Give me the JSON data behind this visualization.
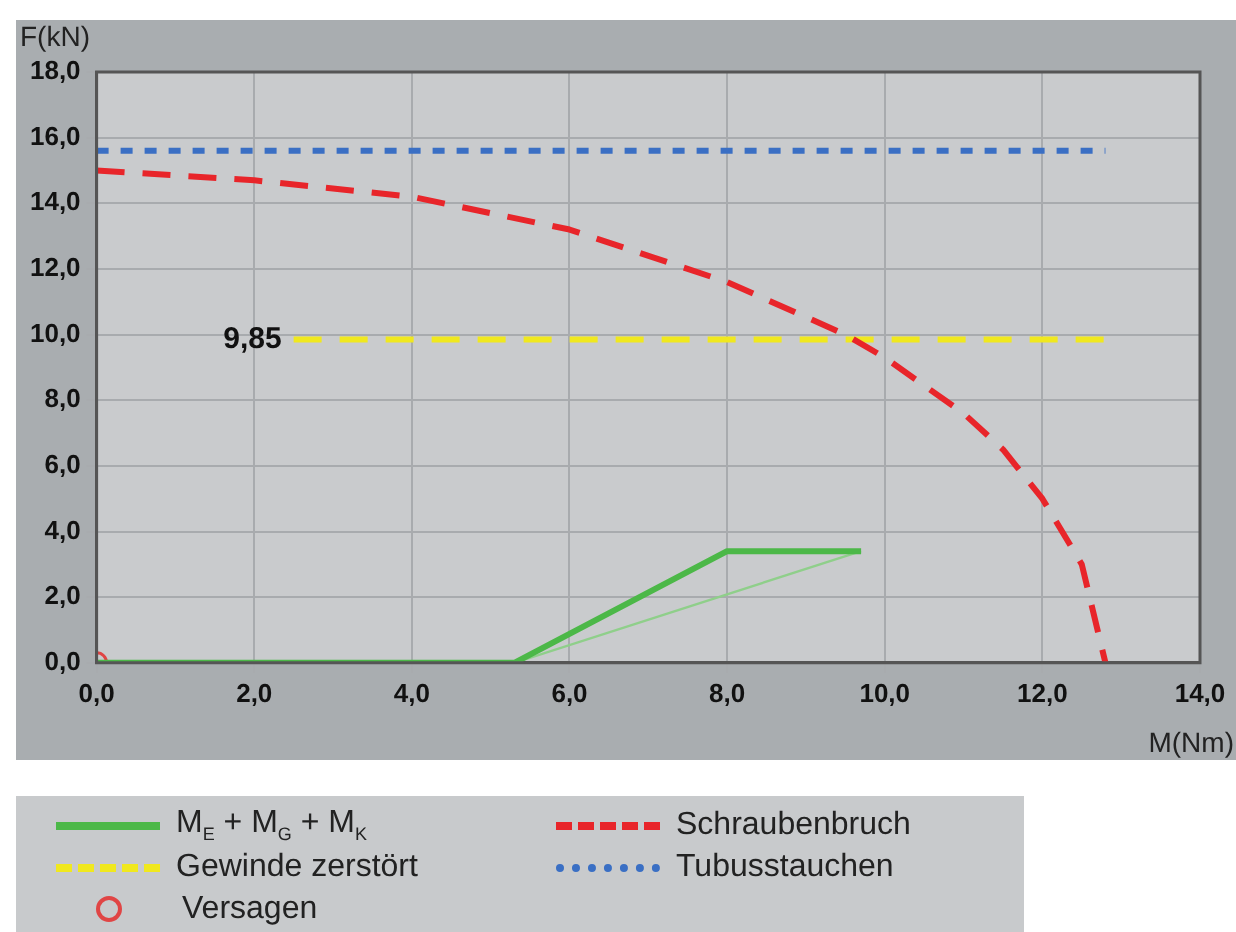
{
  "chart_data": {
    "type": "line",
    "xlabel": "M(Nm)",
    "ylabel": "F(kN)",
    "xlim": [
      0,
      14
    ],
    "ylim": [
      0,
      18
    ],
    "xticks": [
      {
        "value": 0,
        "label": "0,0"
      },
      {
        "value": 2,
        "label": "2,0"
      },
      {
        "value": 4,
        "label": "4,0"
      },
      {
        "value": 6,
        "label": "6,0"
      },
      {
        "value": 8,
        "label": "8,0"
      },
      {
        "value": 10,
        "label": "10,0"
      },
      {
        "value": 12,
        "label": "12,0"
      },
      {
        "value": 14,
        "label": "14,0"
      }
    ],
    "yticks": [
      {
        "value": 0,
        "label": "0,0"
      },
      {
        "value": 2,
        "label": "2,0"
      },
      {
        "value": 4,
        "label": "4,0"
      },
      {
        "value": 6,
        "label": "6,0"
      },
      {
        "value": 8,
        "label": "8,0"
      },
      {
        "value": 10,
        "label": "10,0"
      },
      {
        "value": 12,
        "label": "12,0"
      },
      {
        "value": 14,
        "label": "14,0"
      },
      {
        "value": 16,
        "label": "16,0"
      },
      {
        "value": 18,
        "label": "18,0"
      }
    ],
    "grid": true,
    "legend": "bottom",
    "marker": "none",
    "series": [
      {
        "name": "M$_{E}$ + M$_{G}$ + M$_{K}$",
        "color": "#4cb848",
        "line_style": "solid",
        "x": [
          0,
          5.3,
          8,
          9.7
        ],
        "values": [
          0,
          0,
          3.4,
          3.4
        ]
      },
      {
        "color": "#8fcf8a",
        "line_style": "solid",
        "x": [
          5.3,
          9.7
        ],
        "values": [
          0,
          3.4
        ]
      },
      {
        "name": "Schraubenbruch",
        "color": "#e8252a",
        "line_style": "dashed",
        "x": [
          0,
          2,
          4,
          6,
          8,
          9.5,
          10,
          11,
          11.5,
          12,
          12.5,
          12.8
        ],
        "values": [
          15,
          14.7,
          14.2,
          13.2,
          11.6,
          10,
          9.3,
          7.6,
          6.5,
          5,
          3,
          0
        ]
      },
      {
        "name": "Gewinde zerstört",
        "color": "#f0e81e",
        "line_style": "dashed",
        "x": [
          2.5,
          12.8
        ],
        "values": [
          9.85,
          9.85
        ]
      },
      {
        "name": "Tubusstauchen",
        "color": "#3a6fc4",
        "line_style": "dotted",
        "x": [
          0,
          12.8
        ],
        "values": [
          15.6,
          15.6
        ]
      },
      {
        "name": "Versagen",
        "type": "scatter",
        "color": "#e04545",
        "marker": "circle",
        "x": [
          0
        ],
        "values": [
          0
        ]
      }
    ],
    "annotations": [
      {
        "text": "9,85",
        "x": 2.5,
        "y": 9.85
      }
    ]
  }
}
